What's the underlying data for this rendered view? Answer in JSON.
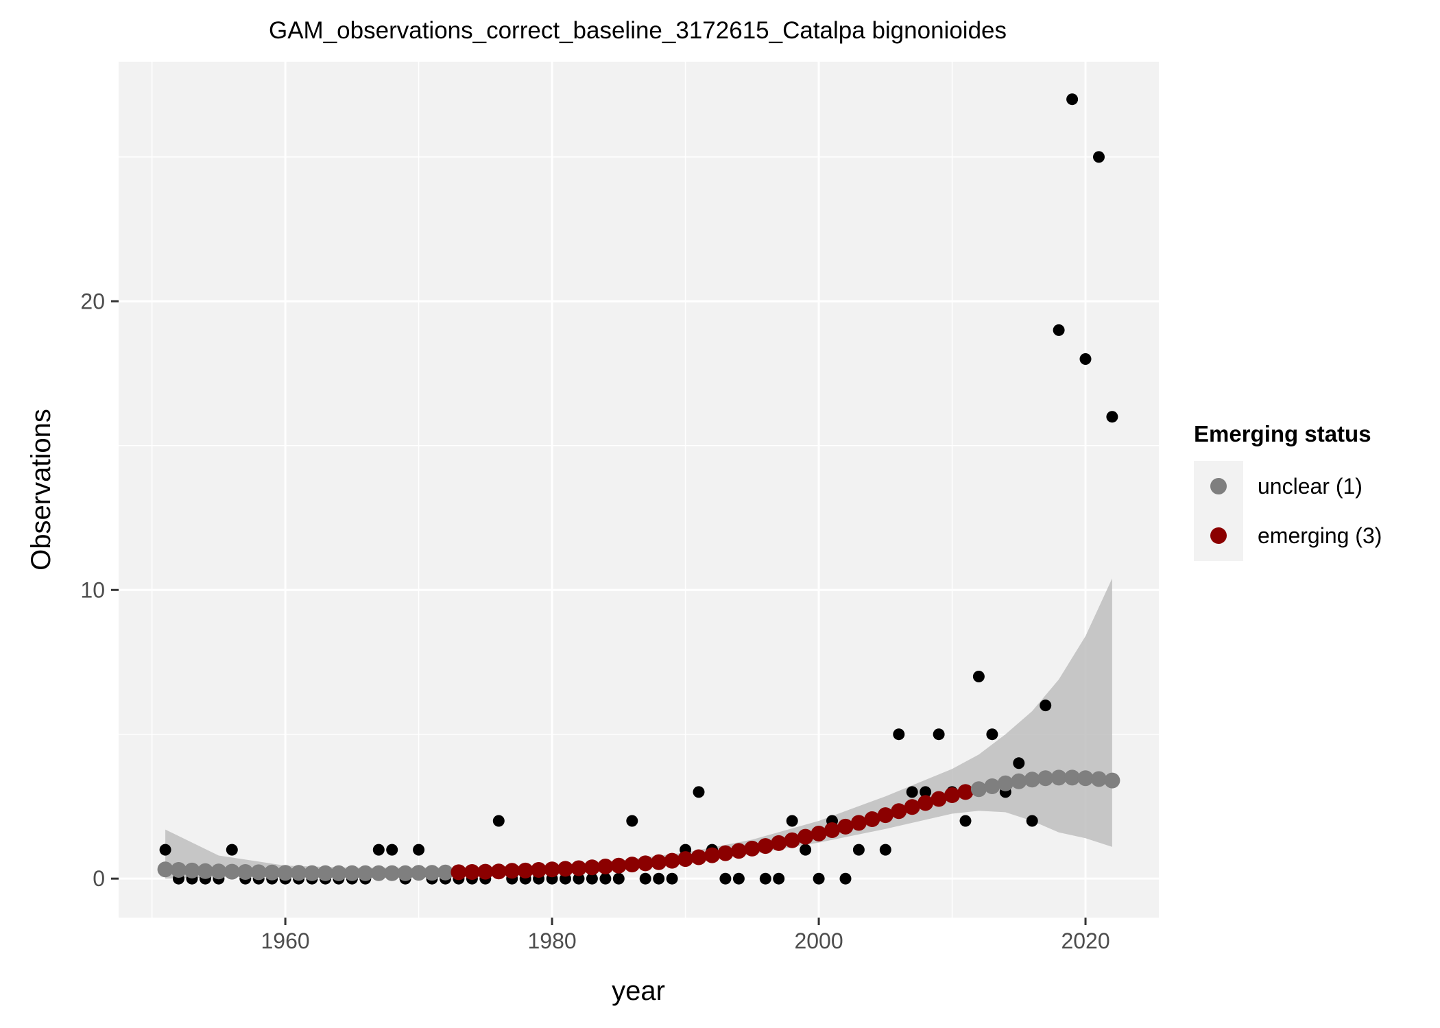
{
  "chart_data": {
    "type": "scatter",
    "title": "GAM_observations_correct_baseline_3172615_Catalpa bignonioides",
    "xlabel": "year",
    "ylabel": "Observations",
    "xlim": [
      1947.5,
      2025.5
    ],
    "ylim": [
      -1.35,
      28.3
    ],
    "x_ticks": [
      1960,
      1980,
      2000,
      2020
    ],
    "x_minor_ticks": [
      1950,
      1970,
      1990,
      2010
    ],
    "y_ticks": [
      0,
      10,
      20
    ],
    "y_minor_ticks": [
      5,
      15,
      25
    ],
    "grid": true,
    "panel_background": "#f2f2f2",
    "legend": {
      "title": "Emerging status",
      "placement": "right",
      "entries": [
        {
          "label": "unclear (1)",
          "color": "#7f7f7f"
        },
        {
          "label": "emerging (3)",
          "color": "#8b0000"
        }
      ]
    },
    "observations": {
      "color": "#000000",
      "x": [
        1951,
        1952,
        1953,
        1954,
        1955,
        1956,
        1957,
        1958,
        1959,
        1960,
        1961,
        1962,
        1963,
        1964,
        1965,
        1966,
        1967,
        1968,
        1969,
        1970,
        1971,
        1972,
        1973,
        1974,
        1975,
        1976,
        1977,
        1978,
        1979,
        1980,
        1981,
        1982,
        1983,
        1984,
        1985,
        1986,
        1987,
        1988,
        1989,
        1990,
        1991,
        1992,
        1993,
        1994,
        1995,
        1996,
        1997,
        1998,
        1999,
        2000,
        2001,
        2002,
        2003,
        2004,
        2005,
        2006,
        2007,
        2008,
        2009,
        2010,
        2011,
        2012,
        2013,
        2014,
        2015,
        2016,
        2017,
        2018,
        2019,
        2020,
        2021,
        2022
      ],
      "y": [
        1,
        0,
        0,
        0,
        0,
        1,
        0,
        0,
        0,
        0,
        0,
        0,
        0,
        0,
        0,
        0,
        1,
        1,
        0,
        1,
        0,
        0,
        0,
        0,
        0,
        2,
        0,
        0,
        0,
        0,
        0,
        0,
        0,
        0,
        0,
        2,
        0,
        0,
        0,
        1,
        3,
        1,
        0,
        0,
        1,
        0,
        0,
        2,
        1,
        0,
        2,
        0,
        1,
        2,
        1,
        5,
        3,
        3,
        5,
        3,
        2,
        7,
        5,
        3,
        4,
        2,
        6,
        19,
        27,
        18,
        25,
        16
      ]
    },
    "fit": {
      "x": [
        1951,
        1952,
        1953,
        1954,
        1955,
        1956,
        1957,
        1958,
        1959,
        1960,
        1961,
        1962,
        1963,
        1964,
        1965,
        1966,
        1967,
        1968,
        1969,
        1970,
        1971,
        1972,
        1973,
        1974,
        1975,
        1976,
        1977,
        1978,
        1979,
        1980,
        1981,
        1982,
        1983,
        1984,
        1985,
        1986,
        1987,
        1988,
        1989,
        1990,
        1991,
        1992,
        1993,
        1994,
        1995,
        1996,
        1997,
        1998,
        1999,
        2000,
        2001,
        2002,
        2003,
        2004,
        2005,
        2006,
        2007,
        2008,
        2009,
        2010,
        2011,
        2012,
        2013,
        2014,
        2015,
        2016,
        2017,
        2018,
        2019,
        2020,
        2021,
        2022
      ],
      "y": [
        0.32,
        0.3,
        0.28,
        0.26,
        0.25,
        0.24,
        0.23,
        0.22,
        0.21,
        0.2,
        0.2,
        0.19,
        0.19,
        0.19,
        0.19,
        0.19,
        0.19,
        0.19,
        0.19,
        0.2,
        0.2,
        0.21,
        0.22,
        0.23,
        0.24,
        0.25,
        0.27,
        0.28,
        0.3,
        0.32,
        0.34,
        0.36,
        0.39,
        0.42,
        0.45,
        0.49,
        0.53,
        0.57,
        0.62,
        0.68,
        0.74,
        0.81,
        0.88,
        0.96,
        1.04,
        1.13,
        1.23,
        1.33,
        1.45,
        1.56,
        1.68,
        1.8,
        1.93,
        2.06,
        2.2,
        2.34,
        2.48,
        2.62,
        2.76,
        2.89,
        3.0,
        3.1,
        3.2,
        3.3,
        3.37,
        3.43,
        3.48,
        3.5,
        3.5,
        3.48,
        3.45,
        3.4
      ],
      "status": [
        "unclear",
        "unclear",
        "unclear",
        "unclear",
        "unclear",
        "unclear",
        "unclear",
        "unclear",
        "unclear",
        "unclear",
        "unclear",
        "unclear",
        "unclear",
        "unclear",
        "unclear",
        "unclear",
        "unclear",
        "unclear",
        "unclear",
        "unclear",
        "unclear",
        "unclear",
        "emerging",
        "emerging",
        "emerging",
        "emerging",
        "emerging",
        "emerging",
        "emerging",
        "emerging",
        "emerging",
        "emerging",
        "emerging",
        "emerging",
        "emerging",
        "emerging",
        "emerging",
        "emerging",
        "emerging",
        "emerging",
        "emerging",
        "emerging",
        "emerging",
        "emerging",
        "emerging",
        "emerging",
        "emerging",
        "emerging",
        "emerging",
        "emerging",
        "emerging",
        "emerging",
        "emerging",
        "emerging",
        "emerging",
        "emerging",
        "emerging",
        "emerging",
        "emerging",
        "emerging",
        "emerging",
        "unclear",
        "unclear",
        "unclear",
        "unclear",
        "unclear",
        "unclear",
        "unclear",
        "unclear",
        "unclear",
        "unclear",
        "unclear"
      ]
    },
    "confidence_band": {
      "color": "#bebebe",
      "x": [
        1951,
        1955,
        1960,
        1965,
        1970,
        1975,
        1980,
        1985,
        1990,
        1995,
        2000,
        2005,
        2010,
        2012,
        2014,
        2016,
        2018,
        2020,
        2022
      ],
      "lower": [
        0.0,
        0.05,
        0.08,
        0.1,
        0.1,
        0.15,
        0.22,
        0.35,
        0.55,
        0.85,
        1.25,
        1.72,
        2.25,
        2.35,
        2.3,
        2.0,
        1.6,
        1.4,
        1.1
      ],
      "upper": [
        1.7,
        0.8,
        0.45,
        0.38,
        0.38,
        0.4,
        0.48,
        0.63,
        0.9,
        1.35,
        2.0,
        2.85,
        3.8,
        4.3,
        5.0,
        5.8,
        6.9,
        8.4,
        10.4
      ]
    }
  }
}
